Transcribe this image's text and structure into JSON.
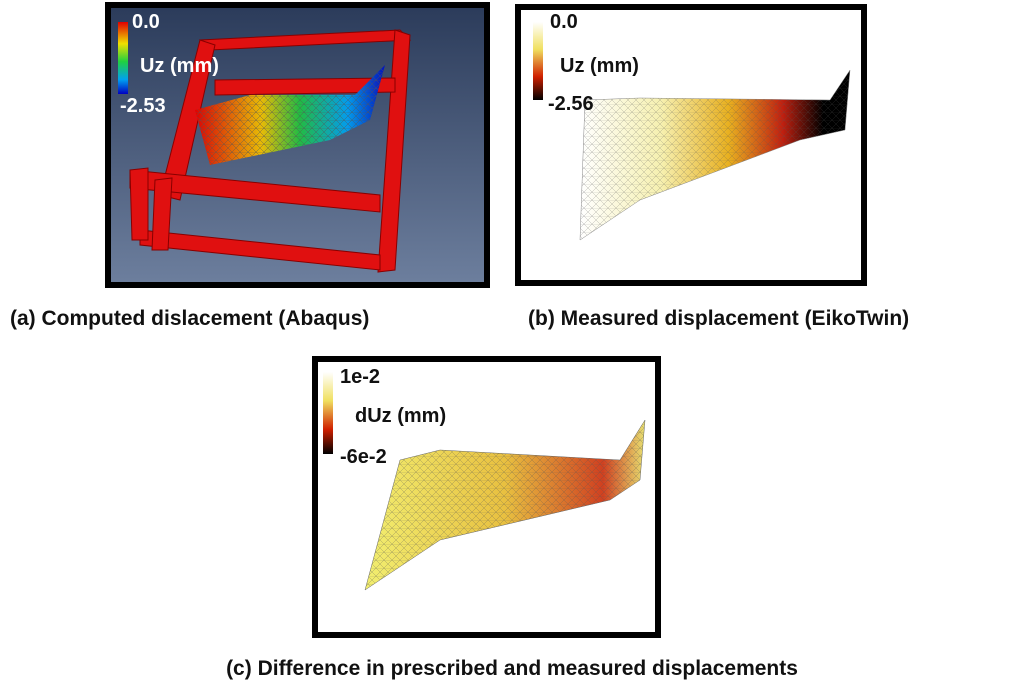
{
  "panels": [
    {
      "legend": {
        "max": "0.0",
        "quantity": "Uz (mm)",
        "min": "-2.53"
      },
      "caption": "(a) Computed dislacement  (Abaqus)"
    },
    {
      "legend": {
        "max": "0.0",
        "quantity": "Uz (mm)",
        "min": "-2.56"
      },
      "caption": "(b) Measured displacement (EikoTwin)"
    },
    {
      "legend": {
        "max": "1e-2",
        "quantity": "dUz (mm)",
        "min": "-6e-2"
      },
      "caption": "(c) Difference in prescribed and measured displacements"
    }
  ]
}
